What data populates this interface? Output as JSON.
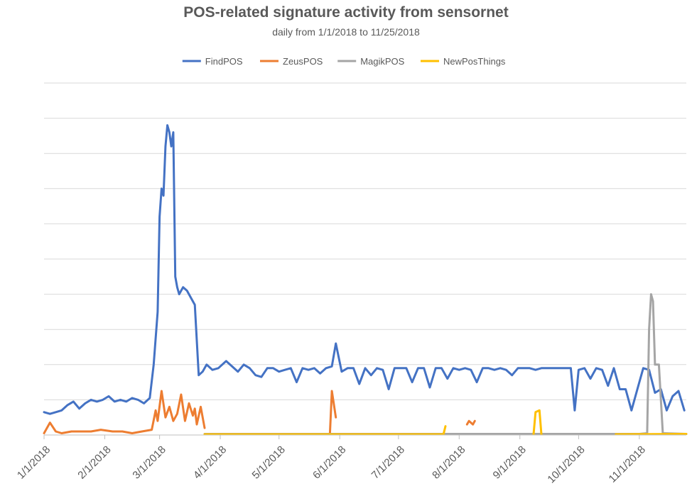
{
  "chart_data": {
    "type": "line",
    "title": "POS-related signature activity from sensornet",
    "subtitle": "daily from 1/1/2018 to 11/25/2018",
    "xlabel": "",
    "ylabel": "",
    "x_range": [
      "2018-01-01",
      "2018-11-25"
    ],
    "y_axis_labels_shown": false,
    "ylim": [
      0,
      100
    ],
    "gridlines": "horizontal",
    "legend_position": "top",
    "x_tick_labels": [
      "1/1/2018",
      "2/1/2018",
      "3/1/2018",
      "4/1/2018",
      "5/1/2018",
      "6/1/2018",
      "7/1/2018",
      "8/1/2018",
      "9/1/2018",
      "10/1/2018",
      "11/1/2018"
    ],
    "x_ticks": [
      "2018-01-01",
      "2018-02-01",
      "2018-03-01",
      "2018-04-01",
      "2018-05-01",
      "2018-06-01",
      "2018-07-01",
      "2018-08-01",
      "2018-09-01",
      "2018-10-01",
      "2018-11-01"
    ],
    "series": [
      {
        "name": "FindPOS",
        "color": "#4472C4",
        "points": [
          [
            "2018-01-01",
            6.5
          ],
          [
            "2018-01-04",
            6.0
          ],
          [
            "2018-01-07",
            6.5
          ],
          [
            "2018-01-10",
            7.0
          ],
          [
            "2018-01-13",
            8.5
          ],
          [
            "2018-01-16",
            9.5
          ],
          [
            "2018-01-19",
            7.5
          ],
          [
            "2018-01-22",
            9.0
          ],
          [
            "2018-01-25",
            10.0
          ],
          [
            "2018-01-28",
            9.5
          ],
          [
            "2018-01-31",
            10.0
          ],
          [
            "2018-02-03",
            11.0
          ],
          [
            "2018-02-06",
            9.5
          ],
          [
            "2018-02-09",
            10.0
          ],
          [
            "2018-02-12",
            9.5
          ],
          [
            "2018-02-15",
            10.5
          ],
          [
            "2018-02-18",
            10.0
          ],
          [
            "2018-02-21",
            9.0
          ],
          [
            "2018-02-24",
            10.5
          ],
          [
            "2018-02-26",
            20.0
          ],
          [
            "2018-02-28",
            35.0
          ],
          [
            "2018-03-01",
            62.0
          ],
          [
            "2018-03-02",
            70.0
          ],
          [
            "2018-03-03",
            68.0
          ],
          [
            "2018-03-04",
            82.0
          ],
          [
            "2018-03-05",
            88.0
          ],
          [
            "2018-03-06",
            86.0
          ],
          [
            "2018-03-07",
            82.0
          ],
          [
            "2018-03-08",
            86.0
          ],
          [
            "2018-03-09",
            45.0
          ],
          [
            "2018-03-10",
            42.0
          ],
          [
            "2018-03-11",
            40.0
          ],
          [
            "2018-03-13",
            42.0
          ],
          [
            "2018-03-15",
            41.0
          ],
          [
            "2018-03-17",
            39.0
          ],
          [
            "2018-03-19",
            37.0
          ],
          [
            "2018-03-21",
            17.0
          ],
          [
            "2018-03-23",
            18.0
          ],
          [
            "2018-03-25",
            20.0
          ],
          [
            "2018-03-28",
            18.5
          ],
          [
            "2018-03-31",
            19.0
          ],
          [
            "2018-04-04",
            21.0
          ],
          [
            "2018-04-07",
            19.5
          ],
          [
            "2018-04-10",
            18.0
          ],
          [
            "2018-04-13",
            20.0
          ],
          [
            "2018-04-16",
            19.0
          ],
          [
            "2018-04-19",
            17.0
          ],
          [
            "2018-04-22",
            16.5
          ],
          [
            "2018-04-25",
            19.0
          ],
          [
            "2018-04-28",
            19.0
          ],
          [
            "2018-05-01",
            18.0
          ],
          [
            "2018-05-04",
            18.5
          ],
          [
            "2018-05-07",
            19.0
          ],
          [
            "2018-05-10",
            15.0
          ],
          [
            "2018-05-13",
            19.0
          ],
          [
            "2018-05-16",
            18.5
          ],
          [
            "2018-05-19",
            19.0
          ],
          [
            "2018-05-22",
            17.5
          ],
          [
            "2018-05-25",
            19.0
          ],
          [
            "2018-05-28",
            19.5
          ],
          [
            "2018-05-30",
            26.0
          ],
          [
            "2018-06-02",
            18.0
          ],
          [
            "2018-06-05",
            19.0
          ],
          [
            "2018-06-08",
            19.0
          ],
          [
            "2018-06-11",
            14.5
          ],
          [
            "2018-06-14",
            19.0
          ],
          [
            "2018-06-17",
            17.0
          ],
          [
            "2018-06-20",
            19.0
          ],
          [
            "2018-06-23",
            18.5
          ],
          [
            "2018-06-26",
            13.0
          ],
          [
            "2018-06-29",
            19.0
          ],
          [
            "2018-07-02",
            19.0
          ],
          [
            "2018-07-05",
            19.0
          ],
          [
            "2018-07-08",
            15.0
          ],
          [
            "2018-07-11",
            19.0
          ],
          [
            "2018-07-14",
            19.0
          ],
          [
            "2018-07-17",
            13.5
          ],
          [
            "2018-07-20",
            19.0
          ],
          [
            "2018-07-23",
            19.0
          ],
          [
            "2018-07-26",
            16.0
          ],
          [
            "2018-07-29",
            19.0
          ],
          [
            "2018-08-01",
            18.5
          ],
          [
            "2018-08-04",
            19.0
          ],
          [
            "2018-08-07",
            18.5
          ],
          [
            "2018-08-10",
            15.0
          ],
          [
            "2018-08-13",
            19.0
          ],
          [
            "2018-08-16",
            19.0
          ],
          [
            "2018-08-19",
            18.5
          ],
          [
            "2018-08-22",
            19.0
          ],
          [
            "2018-08-25",
            18.5
          ],
          [
            "2018-08-28",
            17.0
          ],
          [
            "2018-08-31",
            19.0
          ],
          [
            "2018-09-03",
            19.0
          ],
          [
            "2018-09-06",
            19.0
          ],
          [
            "2018-09-09",
            18.5
          ],
          [
            "2018-09-12",
            19.0
          ],
          [
            "2018-09-15",
            19.0
          ],
          [
            "2018-09-18",
            19.0
          ],
          [
            "2018-09-21",
            19.0
          ],
          [
            "2018-09-24",
            19.0
          ],
          [
            "2018-09-27",
            19.0
          ],
          [
            "2018-09-29",
            7.0
          ],
          [
            "2018-10-01",
            18.5
          ],
          [
            "2018-10-04",
            19.0
          ],
          [
            "2018-10-07",
            16.0
          ],
          [
            "2018-10-10",
            19.0
          ],
          [
            "2018-10-13",
            18.5
          ],
          [
            "2018-10-16",
            14.0
          ],
          [
            "2018-10-19",
            19.0
          ],
          [
            "2018-10-22",
            13.0
          ],
          [
            "2018-10-25",
            13.0
          ],
          [
            "2018-10-28",
            7.0
          ],
          [
            "2018-10-31",
            13.0
          ],
          [
            "2018-11-03",
            19.0
          ],
          [
            "2018-11-06",
            18.5
          ],
          [
            "2018-11-09",
            12.0
          ],
          [
            "2018-11-12",
            13.0
          ],
          [
            "2018-11-15",
            7.0
          ],
          [
            "2018-11-18",
            11.0
          ],
          [
            "2018-11-21",
            12.5
          ],
          [
            "2018-11-24",
            7.0
          ]
        ]
      },
      {
        "name": "ZeusPOS",
        "color": "#ED7D31",
        "points": [
          [
            "2018-01-01",
            0.5
          ],
          [
            "2018-01-04",
            3.5
          ],
          [
            "2018-01-07",
            1.0
          ],
          [
            "2018-01-10",
            0.5
          ],
          [
            "2018-01-15",
            1.0
          ],
          [
            "2018-01-20",
            1.0
          ],
          [
            "2018-01-25",
            1.0
          ],
          [
            "2018-01-30",
            1.5
          ],
          [
            "2018-02-05",
            1.0
          ],
          [
            "2018-02-10",
            1.0
          ],
          [
            "2018-02-15",
            0.5
          ],
          [
            "2018-02-20",
            1.0
          ],
          [
            "2018-02-25",
            1.5
          ],
          [
            "2018-02-27",
            7.0
          ],
          [
            "2018-02-28",
            4.0
          ],
          [
            "2018-03-02",
            12.5
          ],
          [
            "2018-03-04",
            5.0
          ],
          [
            "2018-03-06",
            8.0
          ],
          [
            "2018-03-08",
            4.0
          ],
          [
            "2018-03-10",
            6.0
          ],
          [
            "2018-03-12",
            11.5
          ],
          [
            "2018-03-14",
            4.0
          ],
          [
            "2018-03-16",
            9.0
          ],
          [
            "2018-03-18",
            5.5
          ],
          [
            "2018-03-19",
            7.5
          ],
          [
            "2018-03-20",
            3.0
          ],
          [
            "2018-03-22",
            8.0
          ],
          [
            "2018-03-24",
            2.0
          ],
          [
            null,
            null
          ],
          [
            "2018-05-27",
            0.5
          ],
          [
            "2018-05-28",
            12.5
          ],
          [
            "2018-05-30",
            5.0
          ],
          [
            null,
            null
          ],
          [
            "2018-08-05",
            3.0
          ],
          [
            "2018-08-06",
            4.0
          ],
          [
            "2018-08-08",
            3.0
          ],
          [
            "2018-08-09",
            4.0
          ]
        ]
      },
      {
        "name": "MagikPOS",
        "color": "#A5A5A5",
        "points": [
          [
            "2018-03-24",
            0.3
          ],
          [
            "2018-04-10",
            0.3
          ],
          [
            "2018-05-10",
            0.3
          ],
          [
            "2018-06-10",
            0.3
          ],
          [
            "2018-07-10",
            0.3
          ],
          [
            "2018-08-10",
            0.3
          ],
          [
            "2018-09-10",
            0.3
          ],
          [
            "2018-10-10",
            0.3
          ],
          [
            "2018-11-01",
            0.3
          ],
          [
            "2018-11-05",
            0.5
          ],
          [
            "2018-11-06",
            30.0
          ],
          [
            "2018-11-07",
            40.0
          ],
          [
            "2018-11-08",
            38.0
          ],
          [
            "2018-11-09",
            20.0
          ],
          [
            "2018-11-11",
            20.0
          ],
          [
            "2018-11-13",
            0.5
          ],
          [
            "2018-11-25",
            0.3
          ]
        ]
      },
      {
        "name": "NewPosThings",
        "color": "#FFC000",
        "points": [
          [
            "2018-03-24",
            0.2
          ],
          [
            "2018-07-24",
            0.2
          ],
          [
            "2018-07-25",
            2.5
          ],
          [
            null,
            null
          ],
          [
            "2018-09-08",
            0.2
          ],
          [
            "2018-09-09",
            6.5
          ],
          [
            "2018-09-11",
            7.0
          ],
          [
            "2018-09-12",
            0.2
          ],
          [
            null,
            null
          ],
          [
            "2018-10-20",
            0.2
          ],
          [
            "2018-11-25",
            0.3
          ]
        ]
      }
    ]
  }
}
